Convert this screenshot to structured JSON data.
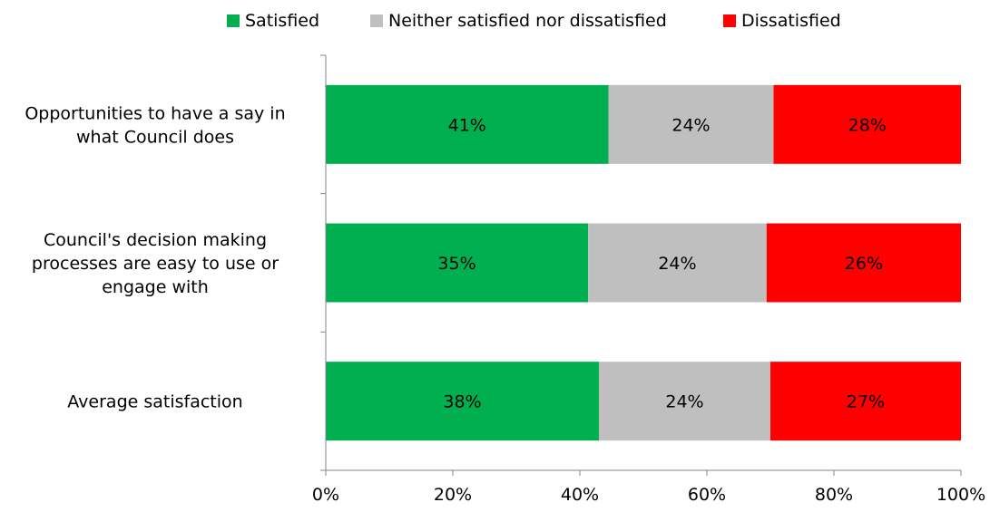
{
  "chart_data": {
    "type": "bar",
    "orientation": "horizontal",
    "stacked": true,
    "categories": [
      "Opportunities to have a say in what Council does",
      "Council's decision making processes are easy to use or engage with",
      "Average satisfaction"
    ],
    "category_lines": [
      [
        "Opportunities to have a say in",
        "what Council does"
      ],
      [
        "Council's decision making",
        "processes are easy to use or",
        "engage with"
      ],
      [
        "Average satisfaction"
      ]
    ],
    "series": [
      {
        "name": "Satisfied",
        "values": [
          41,
          35,
          38
        ],
        "labels": [
          "41%",
          "35%",
          "38%"
        ]
      },
      {
        "name": "Neither satisfied nor dissatisfied",
        "values": [
          24,
          24,
          24
        ],
        "labels": [
          "24%",
          "24%",
          "24%"
        ]
      },
      {
        "name": "Dissatisfied",
        "values": [
          28,
          26,
          27
        ],
        "labels": [
          "28%",
          "26%",
          "27%"
        ]
      }
    ],
    "bar_extents": [
      [
        44.5,
        70.5,
        100
      ],
      [
        41.3,
        69.4,
        100
      ],
      [
        43.0,
        70.0,
        100
      ]
    ],
    "xlim": [
      0,
      100
    ],
    "xticks": [
      "0%",
      "20%",
      "40%",
      "60%",
      "80%",
      "100%"
    ],
    "legend_position": "top",
    "grid": false,
    "colors": {
      "Satisfied": "#00b050",
      "Neither satisfied nor dissatisfied": "#bfbfbf",
      "Dissatisfied": "#ff0000"
    }
  }
}
